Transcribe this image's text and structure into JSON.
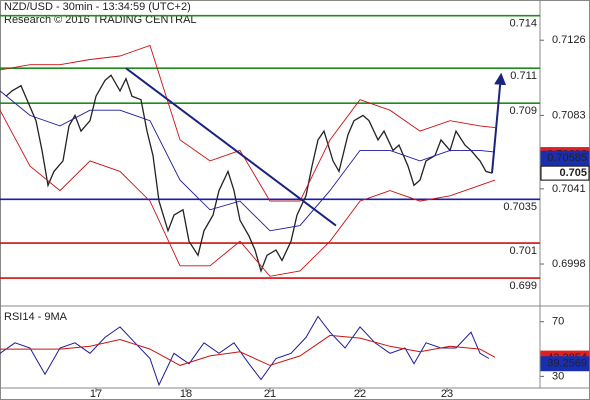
{
  "chart_data": [
    {
      "type": "line",
      "title": "NZD/USD - 30min - 13:34:59 (UTC+2)",
      "subtitle": "Research © 2016 TRADING CENTRAL",
      "xlim": [
        0,
        180
      ],
      "ylim": [
        0.6974,
        0.7149
      ],
      "yticks": [
        0.6998,
        0.7041,
        0.7083,
        0.7126
      ],
      "series": [
        {
          "color": "#222222",
          "width": 1.3,
          "x": [
            2,
            4,
            7,
            9,
            12,
            14,
            16,
            18,
            21,
            23,
            25,
            27,
            30,
            32,
            35,
            37,
            40,
            42,
            44,
            47,
            49,
            51,
            53,
            56,
            58,
            61,
            63,
            66,
            68,
            71,
            73,
            76,
            78,
            80,
            83,
            85,
            87,
            89,
            92,
            94,
            97,
            99,
            102,
            104,
            106,
            108,
            111,
            113,
            116,
            118,
            121,
            123,
            126,
            128,
            131,
            133,
            136,
            138,
            140,
            142,
            145,
            147,
            150,
            152,
            155,
            157,
            160,
            162,
            164
          ],
          "values": [
            0.7094,
            0.7097,
            0.71,
            0.7092,
            0.708,
            0.7063,
            0.7043,
            0.7051,
            0.7057,
            0.7077,
            0.7083,
            0.7074,
            0.708,
            0.7094,
            0.7103,
            0.7106,
            0.7097,
            0.7104,
            0.7094,
            0.7092,
            0.7074,
            0.706,
            0.7034,
            0.7017,
            0.7026,
            0.7029,
            0.7011,
            0.7003,
            0.7017,
            0.7026,
            0.704,
            0.7051,
            0.704,
            0.7023,
            0.7014,
            0.7006,
            0.6994,
            0.7003,
            0.7006,
            0.7,
            0.7011,
            0.7026,
            0.7037,
            0.7054,
            0.7069,
            0.7074,
            0.7057,
            0.7051,
            0.7072,
            0.708,
            0.7083,
            0.708,
            0.7069,
            0.7074,
            0.7063,
            0.7066,
            0.7054,
            0.7043,
            0.7046,
            0.7057,
            0.706,
            0.7069,
            0.7063,
            0.7074,
            0.7066,
            0.7063,
            0.7057,
            0.7051,
            0.705
          ]
        },
        {
          "color": "#cc1111",
          "width": 0.9,
          "x": [
            0,
            10,
            20,
            30,
            40,
            50,
            60,
            70,
            80,
            90,
            100,
            110,
            120,
            130,
            140,
            150,
            160,
            165
          ],
          "values": [
            0.7109,
            0.7112,
            0.7112,
            0.7115,
            0.7117,
            0.7123,
            0.7069,
            0.7057,
            0.7063,
            0.7034,
            0.7034,
            0.7069,
            0.7092,
            0.7086,
            0.7074,
            0.708,
            0.7077,
            0.7076
          ]
        },
        {
          "color": "#1a1aa0",
          "width": 0.9,
          "x": [
            0,
            10,
            20,
            30,
            40,
            50,
            60,
            70,
            80,
            90,
            100,
            110,
            120,
            130,
            140,
            150,
            160,
            165
          ],
          "values": [
            0.7097,
            0.7083,
            0.7077,
            0.7086,
            0.7086,
            0.708,
            0.7046,
            0.7029,
            0.7034,
            0.7017,
            0.702,
            0.704,
            0.7063,
            0.7063,
            0.7057,
            0.7063,
            0.7063,
            0.7062
          ]
        },
        {
          "color": "#cc1111",
          "width": 0.9,
          "x": [
            0,
            10,
            20,
            30,
            40,
            50,
            60,
            70,
            80,
            90,
            100,
            110,
            120,
            130,
            140,
            150,
            160,
            165
          ],
          "values": [
            0.7086,
            0.7054,
            0.704,
            0.7057,
            0.7051,
            0.7034,
            0.6997,
            0.6997,
            0.7011,
            0.6991,
            0.6994,
            0.7011,
            0.7034,
            0.704,
            0.7034,
            0.7037,
            0.7043,
            0.7046
          ]
        }
      ],
      "levels": [
        {
          "value": 0.714,
          "color": "#1e8c1e"
        },
        {
          "value": 0.711,
          "color": "#1e8c1e"
        },
        {
          "value": 0.709,
          "color": "#1e8c1e"
        },
        {
          "value": 0.7035,
          "color": "#1c1cb0"
        },
        {
          "value": 0.701,
          "color": "#d01010"
        },
        {
          "value": 0.699,
          "color": "#d01010"
        }
      ],
      "trend_line": {
        "color": "#1a237e",
        "x": [
          42,
          112
        ],
        "values": [
          0.711,
          0.702
        ]
      },
      "arrow": {
        "color": "#1a237e",
        "x": [
          164,
          167
        ],
        "values": [
          0.705,
          0.7106
        ]
      },
      "price_tags": [
        {
          "value": 0.70606,
          "color": "#e02020",
          "style": "filled"
        },
        {
          "value": 0.70585,
          "color": "#1a2fb0",
          "style": "filled"
        },
        {
          "value": 0.705,
          "color": "#000000",
          "style": "outlined"
        }
      ]
    },
    {
      "type": "line",
      "title": "RSI14 - 9MA",
      "xlim": [
        0,
        180
      ],
      "ylim": [
        21.5,
        81.5
      ],
      "yticks": [
        30,
        70
      ],
      "xticks": [
        {
          "value": 32,
          "label": "17"
        },
        {
          "value": 62,
          "label": "18"
        },
        {
          "value": 90,
          "label": "21"
        },
        {
          "value": 120,
          "label": "22"
        },
        {
          "value": 149,
          "label": "23"
        }
      ],
      "series": [
        {
          "color": "#1a1aa0",
          "width": 1,
          "x": [
            0,
            5,
            10,
            15,
            20,
            25,
            30,
            35,
            40,
            45,
            50,
            53,
            58,
            63,
            68,
            73,
            78,
            83,
            87,
            92,
            97,
            102,
            106,
            110,
            115,
            120,
            125,
            130,
            135,
            138,
            142,
            147,
            152,
            157,
            160,
            163
          ],
          "values": [
            46.9,
            54.6,
            50.8,
            31.5,
            50.8,
            54.6,
            46.9,
            58.5,
            66.2,
            54.6,
            43.1,
            23.8,
            46.9,
            39.2,
            54.6,
            46.9,
            54.6,
            39.2,
            27.7,
            43.1,
            46.9,
            58.5,
            73.8,
            62.3,
            50.8,
            66.2,
            54.6,
            46.9,
            50.8,
            39.2,
            54.6,
            50.8,
            50.8,
            62.3,
            46.9,
            43.1
          ]
        },
        {
          "color": "#cc1111",
          "width": 1,
          "x": [
            0,
            10,
            20,
            30,
            40,
            50,
            60,
            70,
            80,
            90,
            100,
            110,
            120,
            130,
            140,
            150,
            160,
            165
          ],
          "values": [
            50,
            50,
            50,
            52,
            57,
            50,
            38,
            45,
            48,
            38,
            45,
            60,
            58,
            52,
            48,
            52,
            50,
            44
          ]
        }
      ],
      "value_tags": [
        {
          "value": 43.3854,
          "color": "#e02020"
        },
        {
          "value": 39.2569,
          "color": "#1a2fb0"
        }
      ]
    }
  ]
}
